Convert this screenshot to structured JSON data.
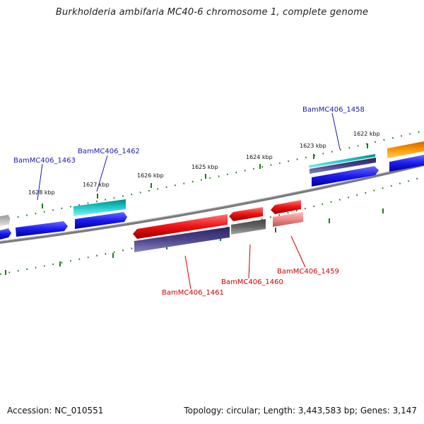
{
  "title": "Burkholderia ambifaria MC40-6 chromosome 1, complete genome",
  "footer": {
    "accession": "Accession: NC_010551",
    "topology": "Topology: circular; Length: 3,443,583 bp; Genes: 3,147"
  },
  "ticks": [
    "1628 kbp",
    "1627 kbp",
    "1626 kbp",
    "1625 kbp",
    "1624 kbp",
    "1623 kbp",
    "1622 kbp"
  ],
  "gene_labels": {
    "top": [
      "BamMC406_1463",
      "BamMC406_1462",
      "BamMC406_1458"
    ],
    "bottom": [
      "BamMC406_1461",
      "BamMC406_1460",
      "BamMC406_1459"
    ]
  },
  "colors": {
    "forward_cds": "#1a1aee",
    "reverse_cds": "#ee1111",
    "rna_teal": "#22cccc",
    "cog_purple": "#4b4488",
    "cog_gray": "#666666",
    "cog_orange": "#ff9900",
    "backbone": "#7a7a7a",
    "tick_green": "#1e7a1e"
  }
}
